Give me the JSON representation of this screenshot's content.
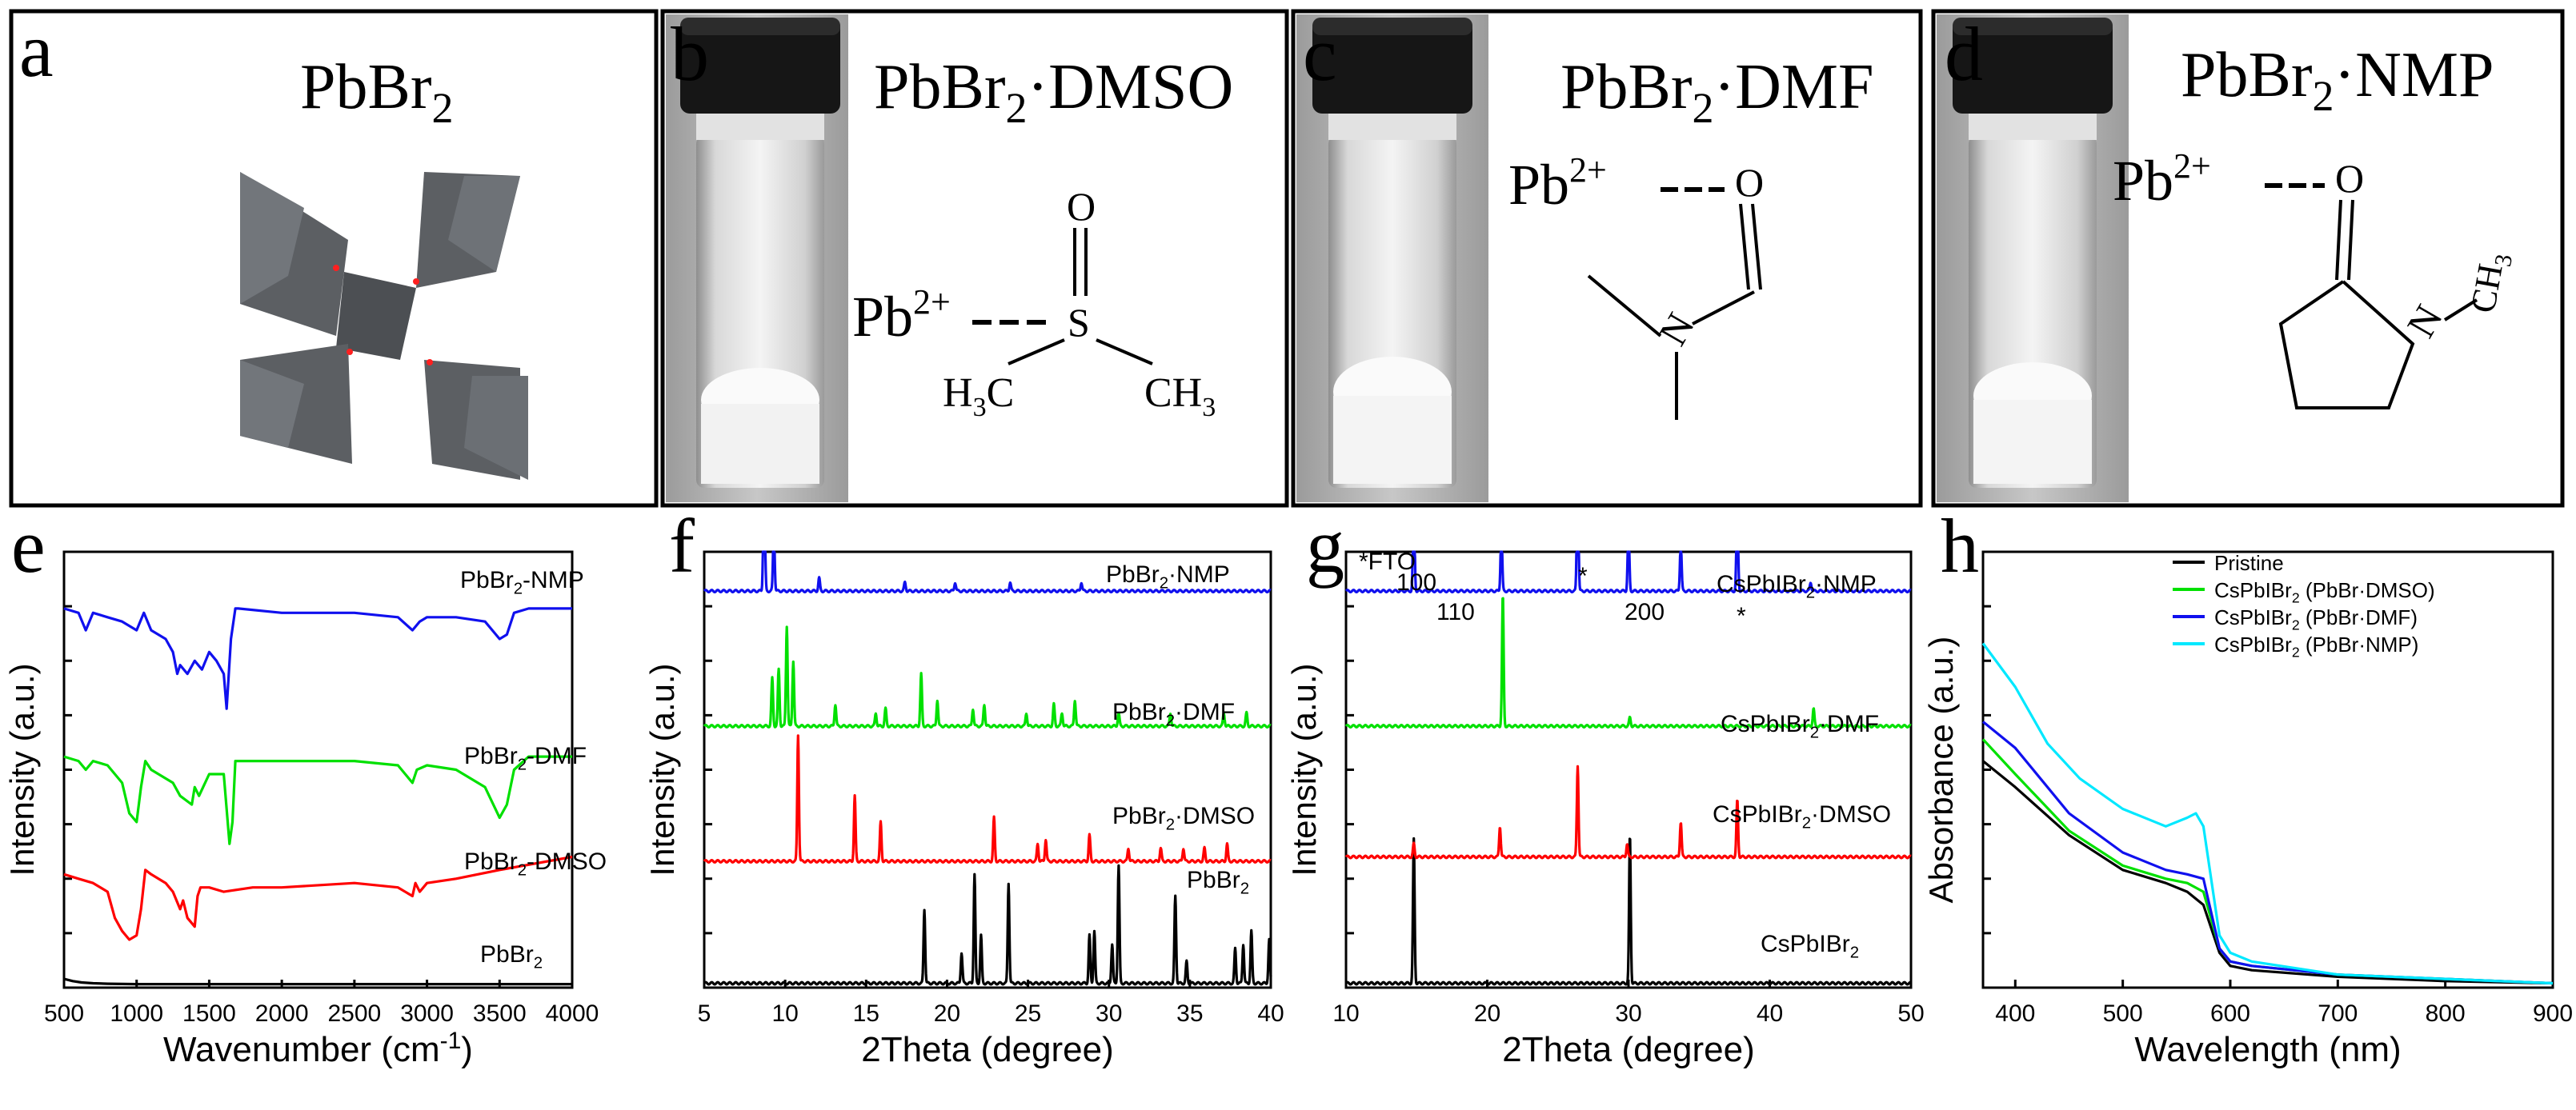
{
  "panels": {
    "a": {
      "letter": "a",
      "title_main": "PbBr",
      "title_sub": "2"
    },
    "b": {
      "letter": "b",
      "title_main": "PbBr",
      "title_sub": "2",
      "title_tail": "·DMSO",
      "mol": {
        "o": "O",
        "s": "S",
        "pb": "Pb",
        "pb_sup": "2+",
        "h3c": "H",
        "h3c_sub": "3",
        "h3c_c": "C",
        "ch3": "CH",
        "ch3_sub": "3"
      }
    },
    "c": {
      "letter": "c",
      "title_main": "PbBr",
      "title_sub": "2",
      "title_tail": "·DMF",
      "mol": {
        "pb": "Pb",
        "pb_sup": "2+",
        "o": "O",
        "n": "N"
      }
    },
    "d": {
      "letter": "d",
      "title_main": "PbBr",
      "title_sub": "2",
      "title_tail": "·NMP",
      "mol": {
        "pb": "Pb",
        "pb_sup": "2+",
        "o": "O",
        "n": "N",
        "ch3": "CH",
        "ch3_sub": "3"
      }
    }
  },
  "colors": {
    "black": "#000000",
    "red": "#ff0000",
    "green": "#00e000",
    "blue": "#1010ee",
    "cyan": "#00e8ff"
  },
  "chart_data": [
    {
      "id": "e",
      "letter": "e",
      "type": "line",
      "xlabel": "Wavenumber (cm",
      "xlabel_sup": "-1",
      "xlabel_tail": ")",
      "ylabel": "Intensity (a.u.)",
      "xlim": [
        500,
        4000
      ],
      "ylim": [
        0,
        100
      ],
      "xticks": [
        500,
        1000,
        1500,
        2000,
        2500,
        3000,
        3500,
        4000
      ],
      "series": [
        {
          "name": "PbBr2",
          "label_main": "PbBr",
          "label_sub": "2",
          "label_tail": "",
          "color": "#000000",
          "x": [
            500,
            560,
            620,
            700,
            800,
            1000,
            2000,
            3000,
            4000
          ],
          "y": [
            2,
            1.5,
            1.2,
            1,
            0.9,
            0.8,
            0.8,
            0.8,
            0.8
          ]
        },
        {
          "name": "PbBr2-DMSO",
          "label_main": "PbBr",
          "label_sub": "2",
          "label_tail": "-DMSO",
          "color": "#ff0000",
          "x": [
            500,
            600,
            700,
            800,
            850,
            900,
            950,
            1000,
            1030,
            1060,
            1100,
            1200,
            1250,
            1300,
            1320,
            1350,
            1400,
            1420,
            1440,
            1500,
            1600,
            1800,
            2000,
            2500,
            2800,
            2900,
            2920,
            2950,
            3000,
            3200,
            3500,
            4000
          ],
          "y": [
            26,
            25,
            24,
            22,
            16,
            13,
            11,
            12,
            18,
            27,
            26,
            24,
            22,
            18,
            20,
            16,
            14,
            21,
            23,
            23,
            22,
            23,
            23,
            24,
            23,
            21,
            24,
            22,
            24,
            25,
            27,
            30
          ]
        },
        {
          "name": "PbBr2-DMF",
          "label_main": "PbBr",
          "label_sub": "2",
          "label_tail": "-DMF",
          "color": "#00e000",
          "x": [
            500,
            600,
            650,
            700,
            800,
            900,
            950,
            1000,
            1030,
            1060,
            1100,
            1250,
            1300,
            1380,
            1400,
            1430,
            1500,
            1600,
            1640,
            1660,
            1680,
            1700,
            1800,
            2000,
            2500,
            2800,
            2900,
            2930,
            3000,
            3200,
            3400,
            3500,
            3550,
            3600,
            3700,
            4000
          ],
          "y": [
            53,
            52,
            50,
            52,
            51,
            47,
            40,
            38,
            46,
            52,
            50,
            47,
            44,
            42,
            46,
            44,
            49,
            49,
            33,
            38,
            52,
            52,
            52,
            52,
            52,
            51,
            47,
            50,
            51,
            50,
            46,
            39,
            42,
            50,
            53,
            53
          ]
        },
        {
          "name": "PbBr2-NMP",
          "label_main": "PbBr",
          "label_sub": "2",
          "label_tail": "-NMP",
          "color": "#1010ee",
          "x": [
            500,
            600,
            650,
            700,
            800,
            900,
            1000,
            1050,
            1100,
            1200,
            1250,
            1280,
            1300,
            1350,
            1400,
            1450,
            1500,
            1550,
            1600,
            1620,
            1650,
            1680,
            1700,
            2000,
            2500,
            2800,
            2900,
            2950,
            3000,
            3200,
            3400,
            3500,
            3550,
            3600,
            3700,
            4000
          ],
          "y": [
            87,
            86,
            82,
            86,
            85,
            84,
            82,
            86,
            82,
            80,
            77,
            72,
            74,
            72,
            75,
            73,
            77,
            75,
            72,
            64,
            80,
            87,
            87,
            86,
            86,
            85,
            82,
            84,
            85,
            85,
            84,
            80,
            81,
            86,
            87,
            87
          ]
        }
      ]
    },
    {
      "id": "f",
      "letter": "f",
      "type": "line",
      "xlabel": "2Theta (degree)",
      "ylabel": "Intensity (a.u.)",
      "xlim": [
        5,
        40
      ],
      "ylim": [
        0,
        100
      ],
      "xticks": [
        5,
        10,
        15,
        20,
        25,
        30,
        35,
        40
      ],
      "series": [
        {
          "name": "PbBr2",
          "label_main": "PbBr",
          "label_sub": "2",
          "label_tail": "",
          "color": "#000000",
          "base": 1,
          "peaks": [
            [
              18.6,
              17
            ],
            [
              20.9,
              7
            ],
            [
              21.7,
              25
            ],
            [
              22.1,
              11
            ],
            [
              23.8,
              23
            ],
            [
              28.8,
              11
            ],
            [
              29.1,
              12
            ],
            [
              30.2,
              9
            ],
            [
              30.6,
              27
            ],
            [
              34.1,
              20
            ],
            [
              34.8,
              5
            ],
            [
              37.8,
              8
            ],
            [
              38.3,
              9
            ],
            [
              38.8,
              12
            ],
            [
              39.9,
              10
            ]
          ]
        },
        {
          "name": "PbBr2·DMSO",
          "label_main": "PbBr",
          "label_sub": "2",
          "label_tail": "·DMSO",
          "color": "#ff0000",
          "base": 29,
          "peaks": [
            [
              10.8,
              29
            ],
            [
              14.3,
              15
            ],
            [
              15.9,
              9
            ],
            [
              22.9,
              10
            ],
            [
              25.6,
              4
            ],
            [
              26.1,
              5
            ],
            [
              28.8,
              6
            ],
            [
              31.2,
              3
            ],
            [
              33.2,
              3
            ],
            [
              34.6,
              3
            ],
            [
              35.9,
              3
            ],
            [
              37.3,
              4
            ]
          ]
        },
        {
          "name": "PbBr2·DMF",
          "label_main": "PbBr",
          "label_sub": "2",
          "label_tail": "·DMF",
          "color": "#00e000",
          "base": 60,
          "peaks": [
            [
              9.2,
              11
            ],
            [
              9.6,
              13
            ],
            [
              10.1,
              23
            ],
            [
              10.5,
              15
            ],
            [
              13.1,
              5
            ],
            [
              15.6,
              3
            ],
            [
              16.2,
              4
            ],
            [
              18.4,
              12
            ],
            [
              19.4,
              6
            ],
            [
              21.6,
              4
            ],
            [
              22.3,
              5
            ],
            [
              24.9,
              3
            ],
            [
              26.6,
              5
            ],
            [
              27.1,
              3
            ],
            [
              27.9,
              6
            ],
            [
              30.6,
              3
            ],
            [
              33.8,
              3
            ],
            [
              37.1,
              3
            ],
            [
              38.5,
              3
            ]
          ]
        },
        {
          "name": "PbBr2·NMP",
          "label_main": "PbBr",
          "label_sub": "2",
          "label_tail": "·NMP",
          "color": "#1010ee",
          "base": 91,
          "peaks": [
            [
              8.7,
              33
            ],
            [
              9.3,
              15
            ],
            [
              12.1,
              3
            ],
            [
              17.4,
              2
            ],
            [
              20.5,
              2
            ],
            [
              23.9,
              2
            ],
            [
              28.3,
              2
            ]
          ]
        }
      ]
    },
    {
      "id": "g",
      "letter": "g",
      "type": "line",
      "xlabel": "2Theta (degree)",
      "ylabel": "Intensity (a.u.)",
      "xlim": [
        10,
        50
      ],
      "ylim": [
        0,
        100
      ],
      "xticks": [
        10,
        20,
        30,
        40,
        50
      ],
      "annotations": {
        "fto": "*FTO",
        "p100": "100",
        "p110": "110",
        "star1": "*",
        "p200": "200",
        "star2": "*"
      },
      "series": [
        {
          "name": "CsPbIBr2",
          "label_main": "CsPbIBr",
          "label_sub": "2",
          "label_tail": "",
          "color": "#000000",
          "base": 1,
          "peaks": [
            [
              14.8,
              33
            ],
            [
              30.1,
              34
            ]
          ]
        },
        {
          "name": "CsPbIBr2·DMSO",
          "label_main": "CsPbIBr",
          "label_sub": "2",
          "label_tail": "·DMSO",
          "color": "#ff0000",
          "base": 30,
          "peaks": [
            [
              14.8,
              3
            ],
            [
              20.9,
              7
            ],
            [
              26.4,
              21
            ],
            [
              29.9,
              3
            ],
            [
              33.7,
              8
            ],
            [
              37.7,
              13
            ]
          ]
        },
        {
          "name": "CsPbIBr2·DMF",
          "label_main": "CsPbIBr",
          "label_sub": "2",
          "label_tail": "·DMF",
          "color": "#00e000",
          "base": 60,
          "peaks": [
            [
              21.1,
              30
            ],
            [
              43.1,
              4
            ],
            [
              30.1,
              2
            ]
          ]
        },
        {
          "name": "CsPbIBr2·NMP",
          "label_main": "CsPbIBr",
          "label_sub": "2",
          "label_tail": "·NMP",
          "color": "#1010ee",
          "base": 91,
          "peaks": [
            [
              14.8,
              24
            ],
            [
              21.0,
              14
            ],
            [
              26.4,
              27
            ],
            [
              30.0,
              16
            ],
            [
              33.7,
              11
            ],
            [
              37.7,
              22
            ],
            [
              42.9,
              2
            ]
          ]
        }
      ]
    },
    {
      "id": "h",
      "letter": "h",
      "type": "line",
      "xlabel": "Wavelength (nm)",
      "ylabel": "Absorbance (a.u.)",
      "xlim": [
        370,
        900
      ],
      "ylim": [
        0,
        100
      ],
      "xticks": [
        400,
        500,
        600,
        700,
        800,
        900
      ],
      "legend_position": "top-right",
      "series": [
        {
          "name": "Pristine",
          "label_main": "Pristine",
          "label_sub": "",
          "label_tail": "",
          "color": "#000000",
          "x": [
            370,
            400,
            450,
            500,
            540,
            560,
            575,
            590,
            600,
            620,
            700,
            800,
            900
          ],
          "y": [
            52,
            46,
            35,
            27,
            24,
            22,
            19,
            8,
            5,
            4,
            2.5,
            1.5,
            1
          ]
        },
        {
          "name": "CsPbIBr2 (PbBr·DMSO)",
          "label_main": "CsPbIBr",
          "label_sub": "2",
          "label_tail": " (PbBr·DMSO)",
          "color": "#00e000",
          "x": [
            370,
            400,
            450,
            500,
            540,
            560,
            575,
            590,
            600,
            620,
            700,
            800,
            900
          ],
          "y": [
            57,
            49,
            36,
            28,
            25,
            24,
            22,
            9,
            6,
            5,
            3,
            2,
            1
          ]
        },
        {
          "name": "CsPbIBr2 (PbBr·DMF)",
          "label_main": "CsPbIBr",
          "label_sub": "2",
          "label_tail": " (PbBr·DMF)",
          "color": "#1010ee",
          "x": [
            370,
            400,
            450,
            500,
            540,
            560,
            575,
            590,
            600,
            620,
            700,
            800,
            900
          ],
          "y": [
            61,
            55,
            40,
            31,
            27,
            26,
            25,
            9,
            6,
            5,
            3,
            2,
            1
          ]
        },
        {
          "name": "CsPbIBr2 (PbBr·NMP)",
          "label_main": "CsPbIBr",
          "label_sub": "2",
          "label_tail": " (PbBr·NMP)",
          "color": "#00e8ff",
          "x": [
            370,
            400,
            430,
            460,
            500,
            540,
            560,
            568,
            575,
            590,
            600,
            620,
            700,
            800,
            900
          ],
          "y": [
            79,
            69,
            56,
            48,
            41,
            37,
            39,
            40,
            37,
            12,
            8,
            6,
            3,
            2,
            1
          ]
        }
      ]
    }
  ]
}
